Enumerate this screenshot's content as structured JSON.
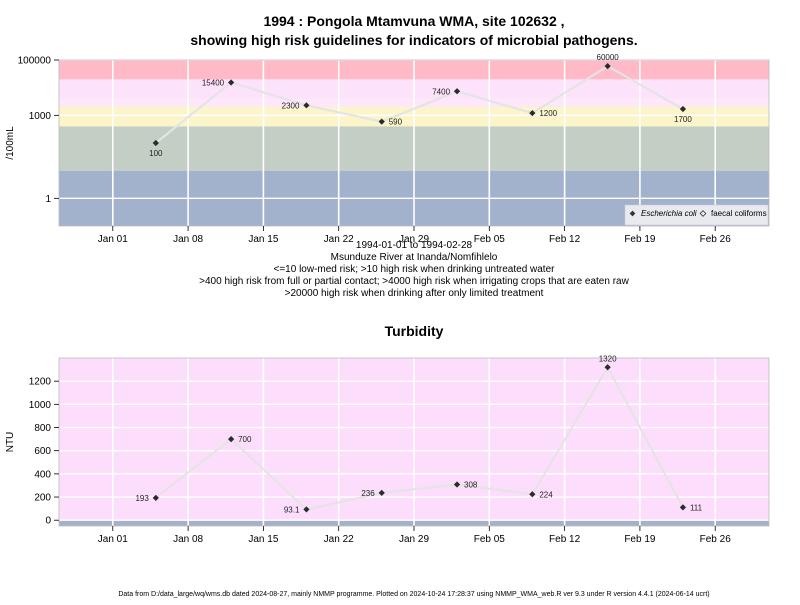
{
  "chart_data": [
    {
      "type": "line",
      "title_lines": [
        "1994 : Pongola Mtamvuna WMA, site 102632 ,",
        "showing high risk guidelines for indicators of microbial pathogens."
      ],
      "ylabel": "/100mL",
      "y_scale": "log",
      "ylim": [
        0.1,
        100000
      ],
      "y_ticks": [
        1,
        1000,
        100000
      ],
      "y_tick_labels": [
        "1",
        "1000",
        "100000"
      ],
      "x_tick_labels": [
        "Jan 01",
        "Jan 08",
        "Jan 15",
        "Jan 22",
        "Jan 29",
        "Feb 05",
        "Feb 12",
        "Feb 19",
        "Feb 26"
      ],
      "x_ticks": [
        "1994-01-01",
        "1994-01-08",
        "1994-01-15",
        "1994-01-22",
        "1994-01-29",
        "1994-02-05",
        "1994-02-12",
        "1994-02-19",
        "1994-02-26"
      ],
      "xlim": [
        "1993-12-27",
        "1994-03-03"
      ],
      "grid": true,
      "risk_bands": [
        {
          "from": 0.1,
          "to": 10,
          "color": "#a2b2cc"
        },
        {
          "from": 10,
          "to": 400,
          "color": "#c3cec5"
        },
        {
          "from": 400,
          "to": 2000,
          "color": "#fbf5c9"
        },
        {
          "from": 2000,
          "to": 4000,
          "color": "#fde7f8"
        },
        {
          "from": 4000,
          "to": 20000,
          "color": "#fce2fb"
        },
        {
          "from": 20000,
          "to": 100000,
          "color": "#ffb9c7"
        }
      ],
      "series": [
        {
          "name": "Escherichia coli",
          "x": [
            "1994-01-05",
            "1994-01-12",
            "1994-01-19",
            "1994-01-26",
            "1994-02-02",
            "1994-02-09",
            "1994-02-16",
            "1994-02-23"
          ],
          "values": [
            100,
            15400,
            2300,
            590,
            7400,
            1200,
            60000,
            1700
          ],
          "labels": [
            "100",
            "15400",
            "2300",
            "590",
            "7400",
            "1200",
            "60000",
            "1700"
          ],
          "label_pos": [
            "below",
            "left",
            "left",
            "right",
            "left",
            "right",
            "above",
            "below"
          ]
        }
      ],
      "legend": {
        "placement": "bottom-right",
        "entries": [
          "Escherichia coli",
          "faecal coliforms"
        ]
      },
      "caption_lines": [
        "1994-01-01 to 1994-02-28",
        "Msunduze River at Inanda/Nomfihlelo",
        "<=10 low-med risk; >10 high risk when drinking untreated water",
        ">400 high risk from full or partial contact; >4000 high risk when irrigating crops that are eaten raw",
        ">20000 high risk when drinking after only limited treatment"
      ]
    },
    {
      "type": "line",
      "title_lines": [
        "Turbidity"
      ],
      "ylabel": "NTU",
      "y_scale": "linear",
      "ylim": [
        -50,
        1400
      ],
      "y_ticks": [
        0,
        200,
        400,
        600,
        800,
        1000,
        1200
      ],
      "y_tick_labels": [
        "0",
        "200",
        "400",
        "600",
        "800",
        "1000",
        "1200"
      ],
      "x_tick_labels": [
        "Jan 01",
        "Jan 08",
        "Jan 15",
        "Jan 22",
        "Jan 29",
        "Feb 05",
        "Feb 12",
        "Feb 19",
        "Feb 26"
      ],
      "x_ticks": [
        "1994-01-01",
        "1994-01-08",
        "1994-01-15",
        "1994-01-22",
        "1994-01-29",
        "1994-02-05",
        "1994-02-12",
        "1994-02-19",
        "1994-02-26"
      ],
      "xlim": [
        "1993-12-27",
        "1994-03-03"
      ],
      "grid": true,
      "bands": [
        {
          "from": -50,
          "to": 0,
          "color": "#a2b2cc"
        },
        {
          "from": 0,
          "to": 1400,
          "color": "#fcdefc"
        }
      ],
      "series": [
        {
          "name": "Turbidity",
          "x": [
            "1994-01-05",
            "1994-01-12",
            "1994-01-19",
            "1994-01-26",
            "1994-02-02",
            "1994-02-09",
            "1994-02-16",
            "1994-02-23"
          ],
          "values": [
            193,
            700,
            93.1,
            236,
            308,
            224,
            1320,
            111
          ],
          "labels": [
            "193",
            "700",
            "93.1",
            "236",
            "308",
            "224",
            "1320",
            "111"
          ],
          "label_pos": [
            "left",
            "right",
            "left",
            "left",
            "right",
            "right",
            "above",
            "right"
          ]
        }
      ]
    }
  ],
  "footer": "Data from D:/data_large/wq/wms.db dated 2024-08-27, mainly NMMP programme. Plotted on 2024-10-24 17:28:37 using NMMP_WMA_web.R ver 9.3 under R version 4.4.1 (2024-06-14 ucrt)"
}
